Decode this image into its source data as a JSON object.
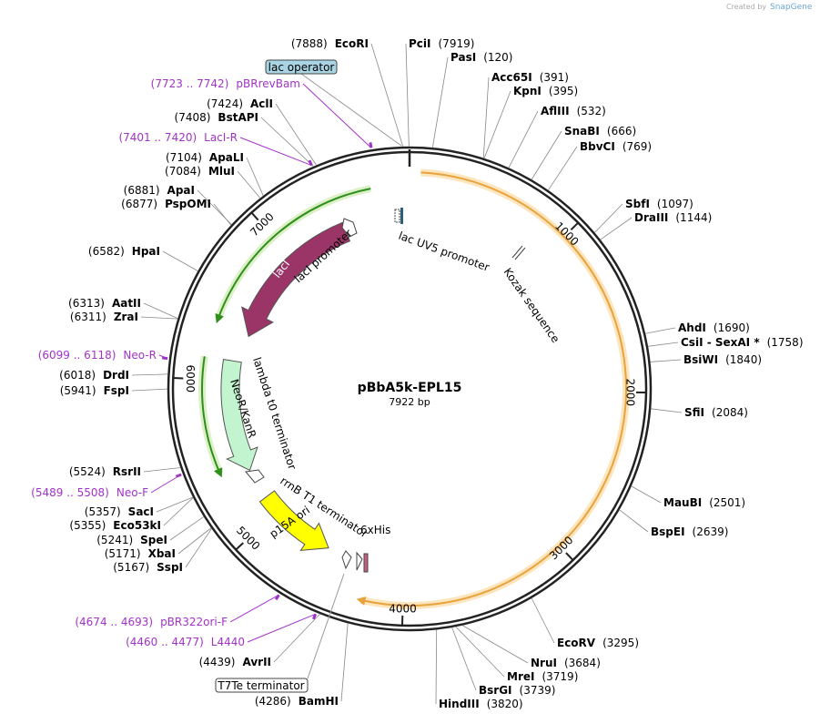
{
  "header": {
    "credit": "Created by",
    "brand": "SnapGene"
  },
  "plasmid": {
    "name": "pBbA5k-EPL15",
    "length": "7922 bp"
  },
  "ring_ticks": [
    "1000",
    "2000",
    "3000",
    "4000",
    "5000",
    "6000",
    "7000"
  ],
  "enzymes": [
    {
      "name": "EcoRI",
      "pos": "(7888)"
    },
    {
      "name": "AclI",
      "pos": "(7424)"
    },
    {
      "name": "BstAPI",
      "pos": "(7408)"
    },
    {
      "name": "ApaLI",
      "pos": "(7104)"
    },
    {
      "name": "MluI",
      "pos": "(7084)"
    },
    {
      "name": "ApaI",
      "pos": "(6881)"
    },
    {
      "name": "PspOMI",
      "pos": "(6877)"
    },
    {
      "name": "HpaI",
      "pos": "(6582)"
    },
    {
      "name": "AatII",
      "pos": "(6313)"
    },
    {
      "name": "ZraI",
      "pos": "(6311)"
    },
    {
      "name": "DrdI",
      "pos": "(6018)"
    },
    {
      "name": "FspI",
      "pos": "(5941)"
    },
    {
      "name": "RsrII",
      "pos": "(5524)"
    },
    {
      "name": "SacI",
      "pos": "(5357)"
    },
    {
      "name": "Eco53kI",
      "pos": "(5355)"
    },
    {
      "name": "SpeI",
      "pos": "(5241)"
    },
    {
      "name": "XbaI",
      "pos": "(5171)"
    },
    {
      "name": "SspI",
      "pos": "(5167)"
    },
    {
      "name": "AvrII",
      "pos": "(4439)"
    },
    {
      "name": "BamHI",
      "pos": "(4286)"
    },
    {
      "name": "PciI",
      "pos": "(7919)"
    },
    {
      "name": "PasI",
      "pos": "(120)"
    },
    {
      "name": "Acc65I",
      "pos": "(391)"
    },
    {
      "name": "KpnI",
      "pos": "(395)"
    },
    {
      "name": "AflIII",
      "pos": "(532)"
    },
    {
      "name": "SnaBI",
      "pos": "(666)"
    },
    {
      "name": "BbvCI",
      "pos": "(769)"
    },
    {
      "name": "SbfI",
      "pos": "(1097)"
    },
    {
      "name": "DraIII",
      "pos": "(1144)"
    },
    {
      "name": "AhdI",
      "pos": "(1690)"
    },
    {
      "name": "CsiI - SexAI *",
      "pos": "(1758)"
    },
    {
      "name": "BsiWI",
      "pos": "(1840)"
    },
    {
      "name": "SfiI",
      "pos": "(2084)"
    },
    {
      "name": "MauBI",
      "pos": "(2501)"
    },
    {
      "name": "BspEI",
      "pos": "(2639)"
    },
    {
      "name": "EcoRV",
      "pos": "(3295)"
    },
    {
      "name": "NruI",
      "pos": "(3684)"
    },
    {
      "name": "MreI",
      "pos": "(3719)"
    },
    {
      "name": "BsrGI",
      "pos": "(3739)"
    },
    {
      "name": "HindIII",
      "pos": "(3820)"
    }
  ],
  "primers": [
    {
      "name": "pBRrevBam",
      "range": "(7723 .. 7742)"
    },
    {
      "name": "LacI-R",
      "range": "(7401 .. 7420)"
    },
    {
      "name": "Neo-R",
      "range": "(6099 .. 6118)"
    },
    {
      "name": "Neo-F",
      "range": "(5489 .. 5508)"
    },
    {
      "name": "pBR322ori-F",
      "range": "(4674 .. 4693)"
    },
    {
      "name": "L4440",
      "range": "(4460 .. 4477)"
    }
  ],
  "features": {
    "lac_operator": "lac operator",
    "t7te": "T7Te terminator",
    "lac_uv5": "lac UV5 promoter",
    "kozak": "Kozak sequence",
    "laci_promoter": "lacI promoter",
    "laci": "lacI",
    "lambda": "lambda t0 terminator",
    "neor": "NeoR/KanR",
    "rrnb": "rrnB T1 terminator",
    "p15a": "p15A ori",
    "his": "6xHis"
  }
}
